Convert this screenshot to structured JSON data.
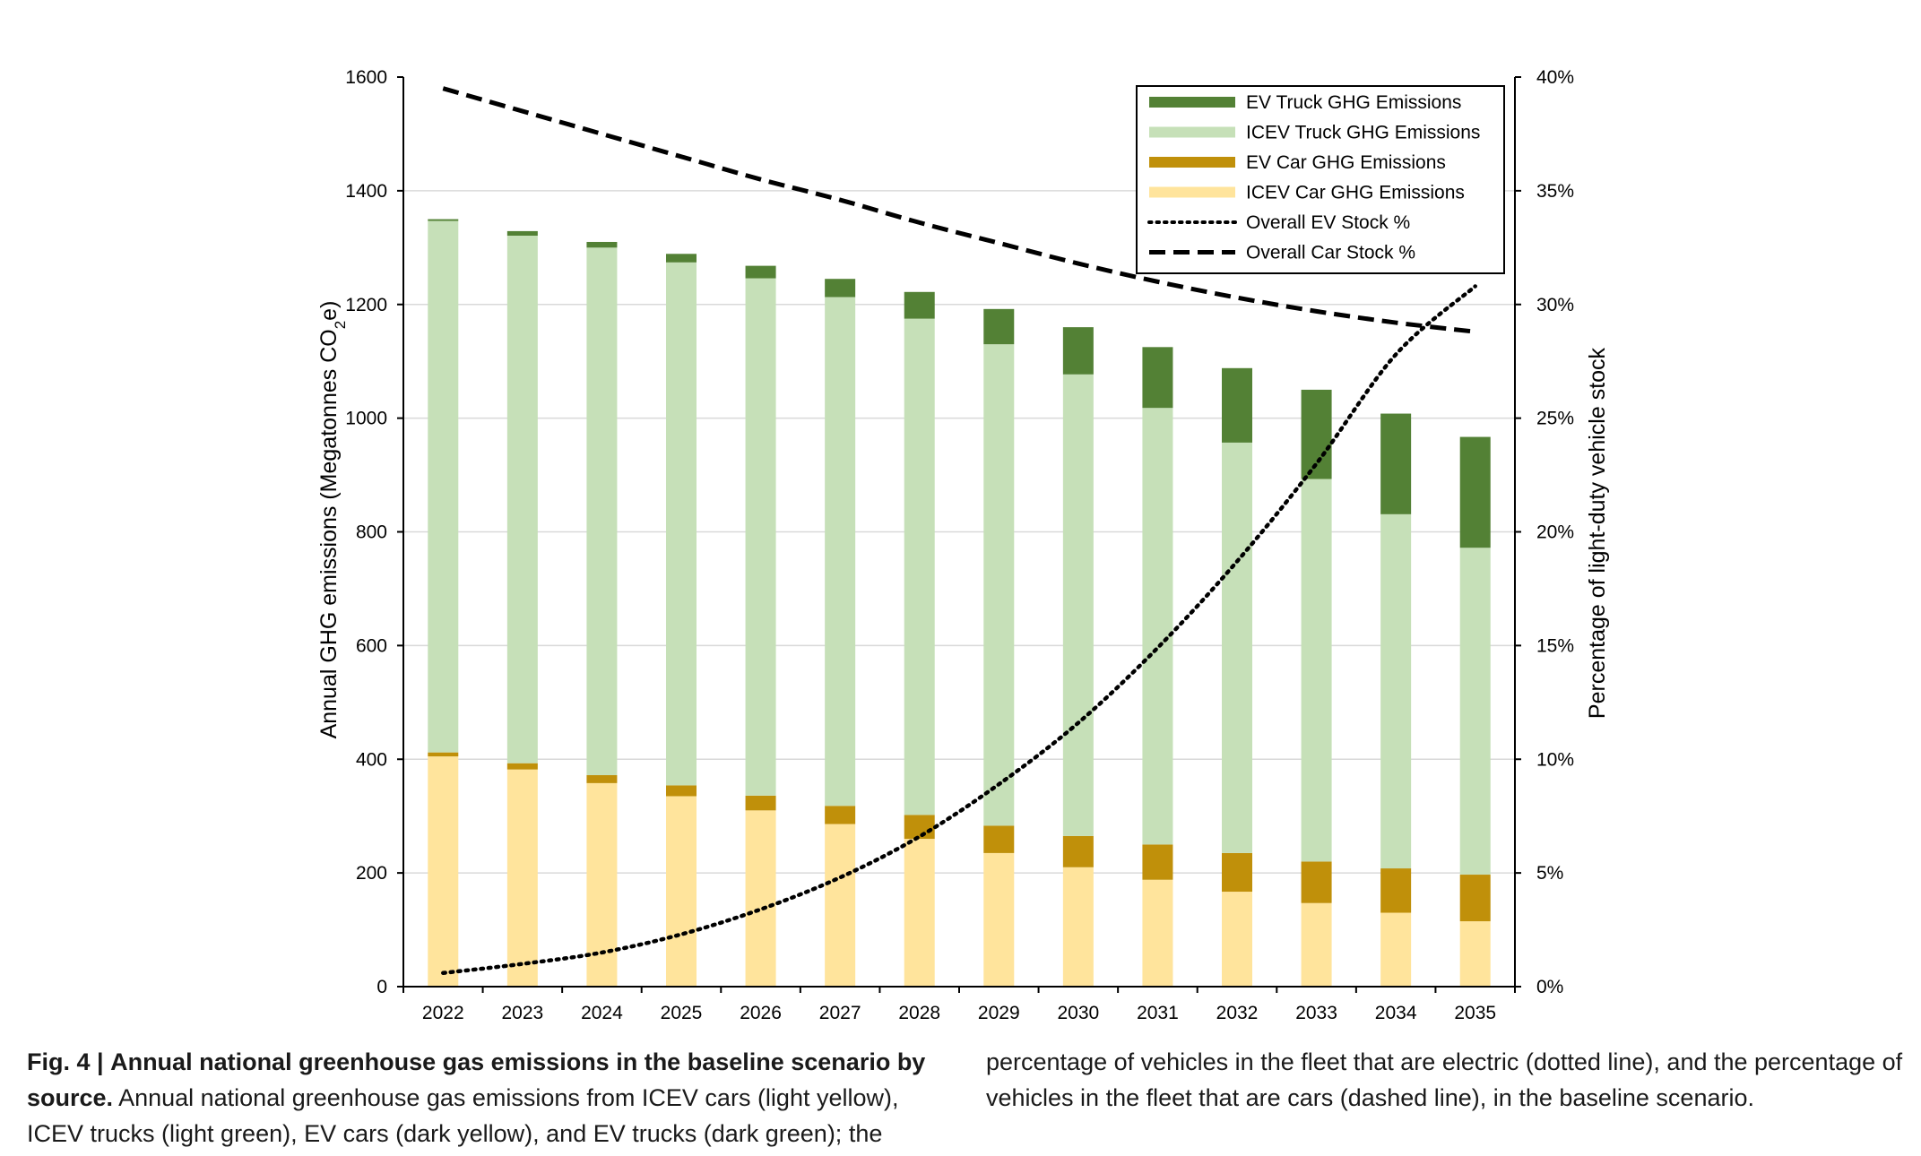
{
  "chart_data": {
    "type": "bar",
    "stacked": true,
    "categories": [
      "2022",
      "2023",
      "2024",
      "2025",
      "2026",
      "2027",
      "2028",
      "2029",
      "2030",
      "2031",
      "2032",
      "2033",
      "2034",
      "2035"
    ],
    "series": [
      {
        "name": "ICEV Car GHG Emissions",
        "color": "#FFE49C",
        "values": [
          405,
          382,
          358,
          335,
          310,
          286,
          260,
          235,
          210,
          188,
          167,
          147,
          130,
          115
        ]
      },
      {
        "name": "EV Car GHG Emissions",
        "color": "#C0900A",
        "values": [
          7,
          11,
          14,
          19,
          26,
          32,
          42,
          48,
          55,
          62,
          68,
          73,
          78,
          82
        ]
      },
      {
        "name": "ICEV Truck GHG Emissions",
        "color": "#C6E0B8",
        "values": [
          935,
          928,
          928,
          920,
          910,
          895,
          873,
          847,
          812,
          768,
          722,
          673,
          623,
          575
        ]
      },
      {
        "name": "EV Truck GHG Emissions",
        "color": "#538135",
        "values": [
          3,
          8,
          10,
          15,
          22,
          32,
          47,
          62,
          83,
          107,
          131,
          157,
          177,
          195
        ]
      }
    ],
    "lines": [
      {
        "name": "Overall EV Stock %",
        "style": "dotted",
        "values": [
          0.6,
          1.0,
          1.5,
          2.3,
          3.4,
          4.8,
          6.6,
          8.9,
          11.6,
          14.9,
          18.7,
          23.0,
          27.8,
          30.8
        ]
      },
      {
        "name": "Overall Car Stock %",
        "style": "dashed",
        "values": [
          39.5,
          38.5,
          37.5,
          36.5,
          35.5,
          34.6,
          33.6,
          32.7,
          31.8,
          31.0,
          30.3,
          29.7,
          29.2,
          28.8
        ]
      }
    ],
    "ylabel": "Annual GHG emissions (Megatonnes CO2e)",
    "ylabel_main": "Annual GHG emissions (Megatonnes CO",
    "ylabel_sub": "2",
    "ylabel_end": "e)",
    "y2label": "Percentage of light-duty vehicle stock",
    "ylim": [
      0,
      1600
    ],
    "yticks": [
      "0",
      "200",
      "400",
      "600",
      "800",
      "1000",
      "1200",
      "1400",
      "1600"
    ],
    "y2lim": [
      0,
      40
    ],
    "y2ticks": [
      "0%",
      "5%",
      "10%",
      "15%",
      "20%",
      "25%",
      "30%",
      "35%",
      "40%"
    ],
    "grid": true,
    "legend_position": "top-right"
  },
  "caption": {
    "fig_label": "Fig. 4 |",
    "title": "Annual national greenhouse gas emissions in the baseline scenario by source.",
    "text_left": "Annual national greenhouse gas emissions from ICEV cars (light yellow), ICEV trucks (light green), EV cars (dark yellow), and EV trucks (dark green); the",
    "text_right": "percentage of vehicles in the fleet that are electric (dotted line), and the percentage of vehicles in the fleet that are cars (dashed line), in the baseline scenario."
  }
}
